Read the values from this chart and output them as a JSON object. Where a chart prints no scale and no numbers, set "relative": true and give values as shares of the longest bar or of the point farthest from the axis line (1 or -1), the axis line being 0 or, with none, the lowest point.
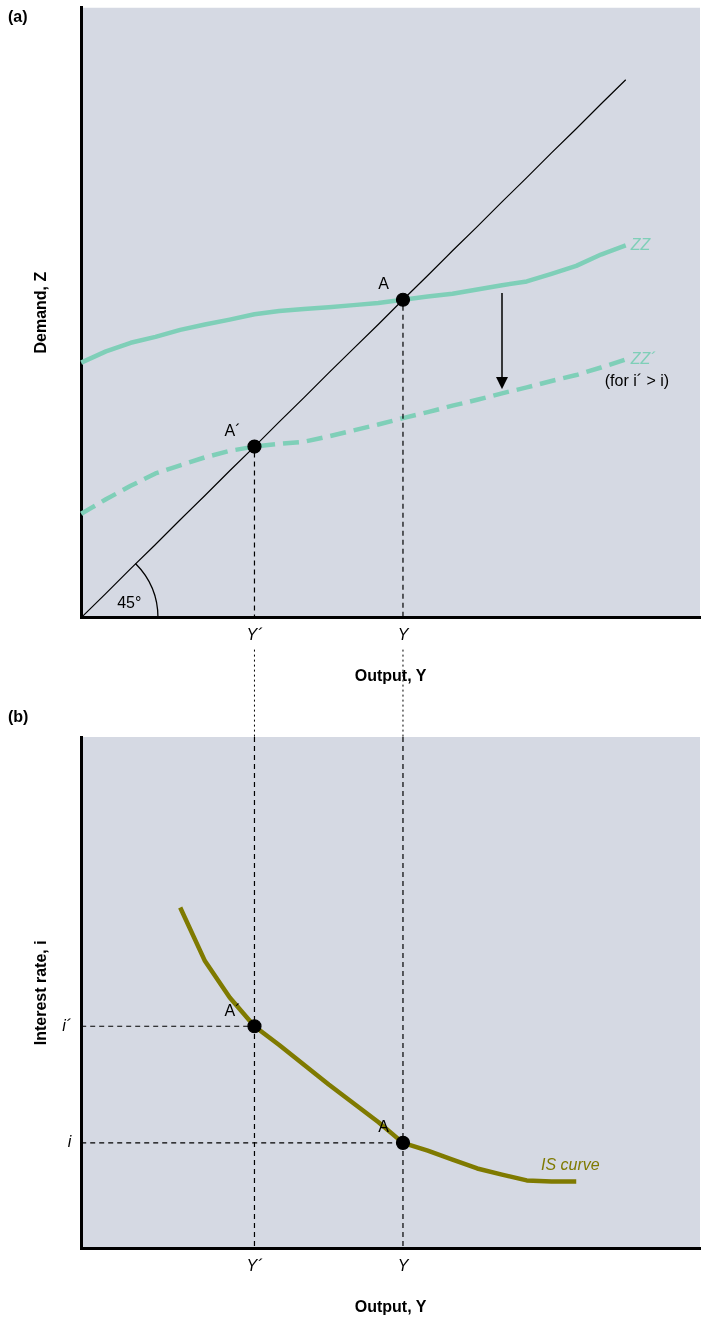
{
  "chart_data": [
    {
      "type": "line",
      "title": "(a)",
      "xlabel": "Output, Y",
      "ylabel": "Demand, Z",
      "relative": true,
      "legend": false,
      "categories": [
        null,
        null,
        null,
        null,
        null,
        null,
        null,
        "Y´",
        null,
        null,
        null,
        null,
        null,
        "Y",
        null,
        null,
        null,
        null,
        null,
        null,
        null,
        null,
        null,
        null,
        null,
        null
      ],
      "series": [
        {
          "color": "#000000",
          "values": [
            0,
            0.045,
            0.091,
            0.136,
            0.182,
            0.227,
            0.273,
            0.318,
            0.364,
            0.409,
            0.455,
            0.5,
            0.545,
            0.591,
            0.636,
            0.682,
            0.727,
            0.773,
            0.818,
            0.864,
            0.909,
            0.955,
            1,
            null,
            null,
            null
          ]
        },
        {
          "name": "ZZ",
          "color": "#7fcfb8",
          "values": [
            0.474,
            0.495,
            0.511,
            0.522,
            0.535,
            0.545,
            0.554,
            0.564,
            0.57,
            0.574,
            0.577,
            0.581,
            0.585,
            0.591,
            0.597,
            0.602,
            0.61,
            0.618,
            0.625,
            0.639,
            0.654,
            0.675,
            0.692,
            null,
            null,
            null
          ]
        },
        {
          "name": "ZZ´",
          "color": "#7fcfb8",
          "line_style": "dashed",
          "values": [
            0.193,
            0.22,
            0.245,
            0.268,
            0.283,
            0.298,
            0.31,
            0.318,
            0.323,
            0.327,
            0.337,
            0.348,
            0.359,
            0.371,
            0.382,
            0.394,
            0.405,
            0.417,
            0.428,
            0.44,
            0.451,
            0.465,
            0.48,
            null,
            null,
            null
          ]
        },
        {
          "type": "scatter",
          "color": "#000000",
          "marker": "circle",
          "values": [
            null,
            null,
            null,
            null,
            null,
            null,
            null,
            0.318,
            null,
            null,
            null,
            null,
            null,
            0.591,
            null,
            null,
            null,
            null,
            null,
            null,
            null,
            null,
            null,
            null,
            null,
            null
          ]
        }
      ],
      "annotations": [
        {
          "text": "A",
          "x": "Y",
          "y": 0.591
        },
        {
          "text": "A´",
          "x": "Y´",
          "y": 0.318
        },
        "45°",
        "(for i´ > i)"
      ]
    },
    {
      "type": "line",
      "title": "(b)",
      "xlabel": "Output, Y",
      "ylabel": "Interest rate, i",
      "relative": true,
      "legend": false,
      "categories": [
        null,
        null,
        null,
        null,
        null,
        null,
        null,
        "Y´",
        null,
        null,
        null,
        null,
        null,
        "Y",
        null,
        null,
        null,
        null,
        null,
        null,
        null,
        null,
        null,
        null,
        null,
        null
      ],
      "series": [
        {
          "name": "IS curve",
          "color": "#7f7a00",
          "values": [
            null,
            null,
            null,
            null,
            1,
            0.843,
            0.736,
            0.652,
            0.597,
            0.539,
            0.481,
            0.426,
            0.371,
            0.31,
            0.287,
            0.261,
            0.235,
            0.217,
            0.2,
            0.197,
            0.197,
            null,
            null,
            null,
            null,
            null
          ]
        },
        {
          "type": "scatter",
          "color": "#000000",
          "marker": "circle",
          "values": [
            null,
            null,
            null,
            null,
            null,
            null,
            null,
            0.652,
            null,
            null,
            null,
            null,
            null,
            0.31,
            null,
            null,
            null,
            null,
            null,
            null,
            null,
            null,
            null,
            null,
            null,
            null
          ]
        }
      ],
      "ref_lines": [
        {
          "axis": "y",
          "value": 0.652,
          "label": "i´",
          "line_style": "dashed",
          "color": "#000000"
        },
        {
          "axis": "y",
          "value": 0.31,
          "label": "i",
          "line_style": "dashed",
          "color": "#000000"
        }
      ],
      "annotations": [
        {
          "text": "A´",
          "x": "Y´",
          "y": 0.652
        },
        {
          "text": "A",
          "x": "Y",
          "y": 0.31
        }
      ]
    }
  ]
}
